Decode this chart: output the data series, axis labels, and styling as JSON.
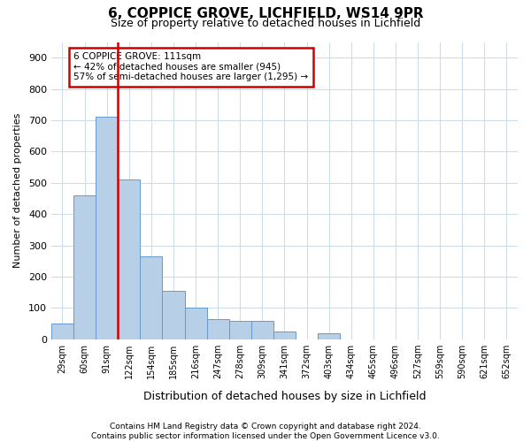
{
  "title": "6, COPPICE GROVE, LICHFIELD, WS14 9PR",
  "subtitle": "Size of property relative to detached houses in Lichfield",
  "xlabel": "Distribution of detached houses by size in Lichfield",
  "ylabel": "Number of detached properties",
  "bar_labels": [
    "29sqm",
    "60sqm",
    "91sqm",
    "122sqm",
    "154sqm",
    "185sqm",
    "216sqm",
    "247sqm",
    "278sqm",
    "309sqm",
    "341sqm",
    "372sqm",
    "403sqm",
    "434sqm",
    "465sqm",
    "496sqm",
    "527sqm",
    "559sqm",
    "590sqm",
    "621sqm",
    "652sqm"
  ],
  "bar_values": [
    50,
    460,
    710,
    510,
    265,
    155,
    100,
    63,
    60,
    60,
    25,
    0,
    20,
    0,
    0,
    0,
    0,
    0,
    0,
    0,
    0
  ],
  "bar_color": "#b8cfe8",
  "bar_edge_color": "#6699cc",
  "vline_color": "#cc0000",
  "annotation_line1": "6 COPPICE GROVE: 111sqm",
  "annotation_line2": "← 42% of detached houses are smaller (945)",
  "annotation_line3": "57% of semi-detached houses are larger (1,295) →",
  "annotation_box_color": "#ffffff",
  "annotation_box_edge": "#cc0000",
  "ylim_max": 950,
  "yticks": [
    0,
    100,
    200,
    300,
    400,
    500,
    600,
    700,
    800,
    900
  ],
  "footnote_line1": "Contains HM Land Registry data © Crown copyright and database right 2024.",
  "footnote_line2": "Contains public sector information licensed under the Open Government Licence v3.0.",
  "fig_width": 6.0,
  "fig_height": 5.0,
  "bg_color": "#ffffff",
  "grid_color": "#ccdde8"
}
